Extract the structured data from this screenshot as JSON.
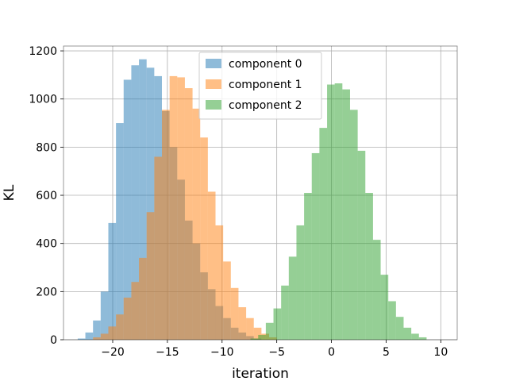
{
  "chart_data": {
    "type": "histogram",
    "title": "",
    "xlabel": "iteration",
    "ylabel": "KL",
    "xlim": [
      -24.5,
      11.5
    ],
    "ylim": [
      0,
      1220
    ],
    "grid": true,
    "legend_position": "top-center",
    "x_ticks": [
      -20,
      -15,
      -10,
      -5,
      0,
      5,
      10
    ],
    "y_ticks": [
      0,
      200,
      400,
      600,
      800,
      1000,
      1200
    ],
    "series": [
      {
        "name": "component 0",
        "color": "#1f77b4",
        "opacity": 0.5,
        "bins": [
          [
            -23.2,
            -22.5,
            5
          ],
          [
            -22.5,
            -21.8,
            30
          ],
          [
            -21.8,
            -21.1,
            80
          ],
          [
            -21.1,
            -20.4,
            200
          ],
          [
            -20.4,
            -19.7,
            485
          ],
          [
            -19.7,
            -19.0,
            900
          ],
          [
            -19.0,
            -18.3,
            1080
          ],
          [
            -18.3,
            -17.6,
            1140
          ],
          [
            -17.6,
            -16.9,
            1165
          ],
          [
            -16.9,
            -16.2,
            1130
          ],
          [
            -16.2,
            -15.5,
            1095
          ],
          [
            -15.5,
            -14.8,
            950
          ],
          [
            -14.8,
            -14.1,
            800
          ],
          [
            -14.1,
            -13.4,
            665
          ],
          [
            -13.4,
            -12.7,
            495
          ],
          [
            -12.7,
            -12.0,
            400
          ],
          [
            -12.0,
            -11.3,
            280
          ],
          [
            -11.3,
            -10.6,
            210
          ],
          [
            -10.6,
            -9.9,
            140
          ],
          [
            -9.9,
            -9.2,
            90
          ],
          [
            -9.2,
            -8.5,
            50
          ],
          [
            -8.5,
            -7.8,
            30
          ],
          [
            -7.8,
            -7.1,
            15
          ],
          [
            -7.1,
            -6.4,
            5
          ]
        ]
      },
      {
        "name": "component 1",
        "color": "#ff7f0e",
        "opacity": 0.5,
        "bins": [
          [
            -21.8,
            -21.1,
            10
          ],
          [
            -21.1,
            -20.4,
            25
          ],
          [
            -20.4,
            -19.7,
            55
          ],
          [
            -19.7,
            -19.0,
            105
          ],
          [
            -19.0,
            -18.3,
            175
          ],
          [
            -18.3,
            -17.6,
            240
          ],
          [
            -17.6,
            -16.9,
            340
          ],
          [
            -16.9,
            -16.2,
            530
          ],
          [
            -16.2,
            -15.5,
            760
          ],
          [
            -15.5,
            -14.8,
            955
          ],
          [
            -14.8,
            -14.1,
            1095
          ],
          [
            -14.1,
            -13.4,
            1090
          ],
          [
            -13.4,
            -12.7,
            1045
          ],
          [
            -12.7,
            -12.0,
            960
          ],
          [
            -12.0,
            -11.3,
            840
          ],
          [
            -11.3,
            -10.6,
            615
          ],
          [
            -10.6,
            -9.9,
            475
          ],
          [
            -9.9,
            -9.2,
            325
          ],
          [
            -9.2,
            -8.5,
            215
          ],
          [
            -8.5,
            -7.8,
            135
          ],
          [
            -7.8,
            -7.1,
            90
          ],
          [
            -7.1,
            -6.4,
            50
          ],
          [
            -6.4,
            -5.7,
            25
          ],
          [
            -5.7,
            -5.0,
            10
          ]
        ]
      },
      {
        "name": "component 2",
        "color": "#2ca02c",
        "opacity": 0.5,
        "bins": [
          [
            -7.4,
            -6.7,
            5
          ],
          [
            -6.7,
            -6.0,
            20
          ],
          [
            -6.0,
            -5.3,
            70
          ],
          [
            -5.3,
            -4.6,
            130
          ],
          [
            -4.6,
            -3.9,
            225
          ],
          [
            -3.9,
            -3.2,
            345
          ],
          [
            -3.2,
            -2.5,
            475
          ],
          [
            -2.5,
            -1.8,
            610
          ],
          [
            -1.8,
            -1.1,
            775
          ],
          [
            -1.1,
            -0.4,
            880
          ],
          [
            -0.4,
            0.3,
            1060
          ],
          [
            0.3,
            1.0,
            1065
          ],
          [
            1.0,
            1.7,
            1040
          ],
          [
            1.7,
            2.4,
            955
          ],
          [
            2.4,
            3.1,
            785
          ],
          [
            3.1,
            3.8,
            610
          ],
          [
            3.8,
            4.5,
            415
          ],
          [
            4.5,
            5.2,
            270
          ],
          [
            5.2,
            5.9,
            160
          ],
          [
            5.9,
            6.6,
            95
          ],
          [
            6.6,
            7.3,
            50
          ],
          [
            7.3,
            8.0,
            25
          ],
          [
            8.0,
            8.7,
            10
          ]
        ]
      }
    ]
  }
}
